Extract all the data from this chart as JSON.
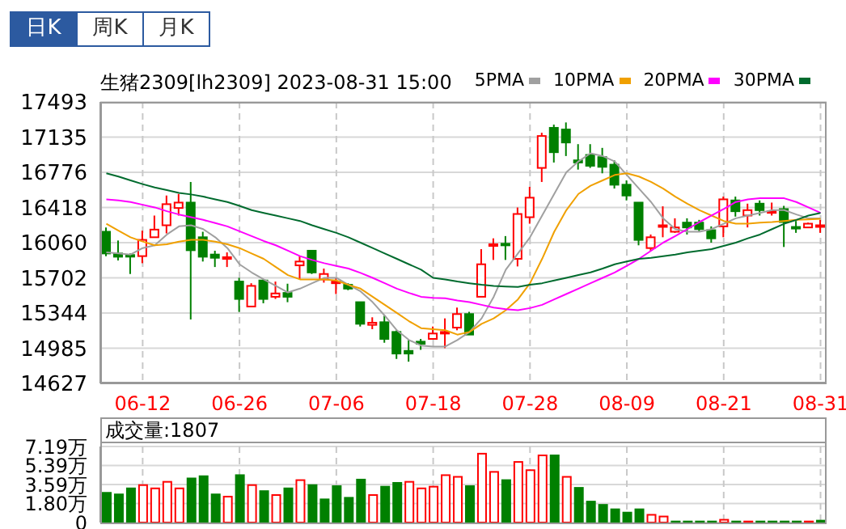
{
  "chart_data": [
    {
      "type": "candlestick",
      "title": "生猪2309[lh2309] 2023-08-31 15:00",
      "annotations": [
        "日K",
        "周K",
        "月K"
      ],
      "legend": "top right",
      "grid": true,
      "marker": "none",
      "categories": [
        null,
        null,
        null,
        "06-12",
        null,
        null,
        null,
        null,
        null,
        null,
        null,
        "06-26",
        null,
        null,
        null,
        null,
        null,
        null,
        null,
        "07-06",
        null,
        null,
        null,
        null,
        null,
        null,
        null,
        "07-18",
        null,
        null,
        null,
        null,
        null,
        null,
        null,
        "07-28",
        null,
        null,
        null,
        null,
        null,
        null,
        null,
        "08-09",
        null,
        null,
        null,
        null,
        null,
        null,
        null,
        "08-21",
        null,
        null,
        null,
        null,
        null,
        null,
        null,
        "08-31"
      ],
      "ylim": [
        14627,
        17493
      ],
      "yticks": [
        14627,
        14985,
        15344,
        15702,
        16060,
        16418,
        16776,
        17135,
        17493
      ],
      "ohlc": [
        [
          16171,
          16215,
          15923,
          15950
        ],
        [
          15950,
          16082,
          15879,
          15917
        ],
        [
          15934,
          15950,
          15741,
          15923
        ],
        [
          15923,
          16182,
          15851,
          16088
        ],
        [
          16115,
          16336,
          16115,
          16193
        ],
        [
          16237,
          16540,
          16154,
          16452
        ],
        [
          16413,
          16556,
          16336,
          16468
        ],
        [
          16468,
          16678,
          15278,
          15983
        ],
        [
          16115,
          16171,
          15868,
          15917
        ],
        [
          15939,
          15978,
          15812,
          15906
        ],
        [
          15895,
          15961,
          15812,
          15912
        ],
        [
          15664,
          15702,
          15355,
          15487
        ],
        [
          15410,
          15647,
          15410,
          15620
        ],
        [
          15675,
          15686,
          15443,
          15487
        ],
        [
          15509,
          15664,
          15487,
          15543
        ],
        [
          15548,
          15642,
          15454,
          15509
        ],
        [
          15829,
          15923,
          15686,
          15868
        ],
        [
          15978,
          15978,
          15741,
          15757
        ],
        [
          15686,
          15796,
          15653,
          15741
        ],
        [
          15647,
          15702,
          15537,
          15664
        ],
        [
          15631,
          15647,
          15576,
          15592
        ],
        [
          15454,
          15454,
          15206,
          15234
        ],
        [
          15223,
          15300,
          15179,
          15245
        ],
        [
          15250,
          15317,
          15041,
          15080
        ],
        [
          15151,
          15168,
          14876,
          14931
        ],
        [
          14958,
          15069,
          14848,
          14931
        ],
        [
          15052,
          15080,
          14969,
          15030
        ],
        [
          15080,
          15206,
          15080,
          15135
        ],
        [
          15135,
          15289,
          14986,
          15151
        ],
        [
          15195,
          15399,
          15168,
          15333
        ],
        [
          15333,
          15355,
          15124,
          15124
        ],
        [
          15509,
          15994,
          15509,
          15840
        ],
        [
          16027,
          16104,
          15884,
          16044
        ],
        [
          16049,
          16127,
          15884,
          16038
        ],
        [
          15895,
          16418,
          15818,
          16352
        ],
        [
          16319,
          16628,
          16253,
          16518
        ],
        [
          16821,
          17179,
          16678,
          17146
        ],
        [
          17229,
          17262,
          16876,
          16981
        ],
        [
          17212,
          17284,
          16942,
          17080
        ],
        [
          16898,
          17063,
          16804,
          16876
        ],
        [
          16953,
          17063,
          16821,
          16843
        ],
        [
          16931,
          17025,
          16766,
          16832
        ],
        [
          16854,
          16898,
          16611,
          16650
        ],
        [
          16650,
          16694,
          16490,
          16540
        ],
        [
          16468,
          16468,
          16033,
          16088
        ],
        [
          16005,
          16143,
          15978,
          16115
        ],
        [
          16226,
          16430,
          16115,
          16237
        ],
        [
          16171,
          16308,
          16160,
          16215
        ],
        [
          16264,
          16308,
          16143,
          16215
        ],
        [
          16264,
          16292,
          16171,
          16198
        ],
        [
          16187,
          16226,
          16060,
          16104
        ],
        [
          16226,
          16529,
          16115,
          16501
        ],
        [
          16490,
          16529,
          16325,
          16380
        ],
        [
          16336,
          16457,
          16215,
          16391
        ],
        [
          16457,
          16490,
          16336,
          16391
        ],
        [
          16369,
          16468,
          16336,
          16380
        ],
        [
          16402,
          16435,
          16016,
          16270
        ],
        [
          16220,
          16281,
          16160,
          16209
        ],
        [
          16215,
          16264,
          16215,
          16253
        ],
        [
          16226,
          16292,
          16160,
          16237
        ]
      ],
      "series": [
        {
          "type": "line",
          "name": "5PMA",
          "color": "#a0a0a0",
          "values": [
            15961,
            15950,
            15939,
            16005,
            16033,
            16143,
            16226,
            16237,
            16198,
            16115,
            16005,
            15840,
            15757,
            15686,
            15620,
            15553,
            15592,
            15647,
            15702,
            15702,
            15631,
            15564,
            15454,
            15317,
            15168,
            15069,
            15013,
            15002,
            15002,
            15069,
            15151,
            15289,
            15509,
            15785,
            15950,
            16115,
            16336,
            16556,
            16777,
            16887,
            16970,
            16942,
            16887,
            16749,
            16611,
            16474,
            16308,
            16198,
            16171,
            16171,
            16198,
            16253,
            16308,
            16336,
            16363,
            16391,
            16391,
            16347,
            16308,
            16308
          ]
        },
        {
          "type": "line",
          "name": "10PMA",
          "color": "#f0a000",
          "values": [
            16253,
            16182,
            16115,
            16071,
            16033,
            16044,
            16071,
            16088,
            16088,
            16071,
            16044,
            16005,
            15950,
            15895,
            15812,
            15730,
            15686,
            15686,
            15686,
            15675,
            15631,
            15592,
            15509,
            15427,
            15344,
            15261,
            15190,
            15179,
            15168,
            15124,
            15151,
            15234,
            15289,
            15372,
            15482,
            15647,
            15895,
            16171,
            16391,
            16556,
            16639,
            16694,
            16749,
            16766,
            16733,
            16678,
            16611,
            16529,
            16457,
            16391,
            16336,
            16281,
            16253,
            16253,
            16264,
            16270,
            16281,
            16292,
            16297,
            16303
          ]
        },
        {
          "type": "line",
          "name": "20PMA",
          "color": "#ff00ff",
          "values": [
            16501,
            16490,
            16474,
            16446,
            16419,
            16380,
            16347,
            16319,
            16292,
            16259,
            16226,
            16176,
            16127,
            16077,
            16033,
            15978,
            15923,
            15884,
            15851,
            15824,
            15796,
            15752,
            15702,
            15647,
            15592,
            15548,
            15509,
            15498,
            15493,
            15471,
            15454,
            15427,
            15399,
            15383,
            15372,
            15394,
            15427,
            15482,
            15537,
            15592,
            15647,
            15702,
            15757,
            15824,
            15895,
            15978,
            16060,
            16127,
            16198,
            16270,
            16336,
            16402,
            16474,
            16501,
            16512,
            16512,
            16512,
            16474,
            16419,
            16363
          ]
        },
        {
          "type": "line",
          "name": "30PMA",
          "color": "#006b2e",
          "values": [
            16766,
            16733,
            16694,
            16656,
            16622,
            16595,
            16567,
            16551,
            16529,
            16501,
            16474,
            16435,
            16391,
            16363,
            16336,
            16308,
            16281,
            16237,
            16198,
            16160,
            16115,
            16060,
            16005,
            15950,
            15895,
            15840,
            15785,
            15702,
            15686,
            15664,
            15647,
            15631,
            15620,
            15614,
            15609,
            15631,
            15647,
            15675,
            15702,
            15730,
            15757,
            15796,
            15840,
            15868,
            15895,
            15906,
            15923,
            15939,
            15961,
            15978,
            15994,
            16027,
            16060,
            16104,
            16143,
            16198,
            16253,
            16292,
            16336,
            16363
          ]
        }
      ]
    },
    {
      "type": "bar",
      "title": "成交量:1807",
      "grid": true,
      "categories": [
        null,
        null,
        null,
        null,
        null,
        null,
        null,
        null,
        null,
        null,
        null,
        null,
        null,
        null,
        null,
        null,
        null,
        null,
        null,
        null,
        null,
        null,
        null,
        null,
        null,
        null,
        null,
        null,
        null,
        null,
        null,
        null,
        null,
        null,
        null,
        null,
        null,
        null,
        null,
        null,
        null,
        null,
        null,
        null,
        null,
        null,
        null,
        null,
        null,
        null,
        null,
        null,
        null,
        null,
        null,
        null,
        null,
        null,
        null,
        null
      ],
      "ylim": [
        0,
        7.19
      ],
      "yticks": [
        0,
        {
          "value": 1.8,
          "label": "1.80万"
        },
        {
          "value": 3.59,
          "label": "3.59万"
        },
        {
          "value": 5.39,
          "label": "5.39万"
        },
        {
          "value": 7.19,
          "label": "7.19万"
        }
      ],
      "values": [
        2.81,
        2.66,
        3.23,
        3.54,
        3.23,
        3.85,
        3.23,
        4.17,
        4.38,
        2.66,
        2.45,
        4.48,
        3.54,
        2.97,
        2.6,
        3.23,
        4.01,
        3.54,
        2.19,
        3.44,
        2.34,
        4.06,
        2.6,
        3.39,
        3.75,
        3.85,
        3.23,
        3.39,
        4.48,
        4.32,
        3.44,
        6.51,
        4.79,
        4.01,
        5.73,
        4.95,
        6.35,
        6.35,
        4.32,
        3.28,
        1.98,
        1.67,
        1.25,
        0.94,
        1.25,
        0.73,
        0.57,
        0.1,
        0.1,
        0.1,
        0.1,
        0.26,
        0.1,
        0.1,
        0.1,
        0.1,
        0.1,
        0.1,
        0.1,
        0.18
      ],
      "colors": [
        "#008000",
        "#008000",
        "#008000",
        "#ff0000",
        "#ff0000",
        "#ff0000",
        "#ff0000",
        "#008000",
        "#008000",
        "#008000",
        "#ff0000",
        "#008000",
        "#ff0000",
        "#008000",
        "#ff0000",
        "#008000",
        "#ff0000",
        "#008000",
        "#008000",
        "#008000",
        "#008000",
        "#008000",
        "#ff0000",
        "#008000",
        "#008000",
        "#ff0000",
        "#ff0000",
        "#ff0000",
        "#ff0000",
        "#ff0000",
        "#008000",
        "#ff0000",
        "#ff0000",
        "#008000",
        "#ff0000",
        "#ff0000",
        "#ff0000",
        "#008000",
        "#ff0000",
        "#008000",
        "#008000",
        "#008000",
        "#008000",
        "#008000",
        "#008000",
        "#ff0000",
        "#ff0000",
        "#008000",
        "#008000",
        "#008000",
        "#008000",
        "#ff0000",
        "#008000",
        "#ff0000",
        "#008000",
        "#008000",
        "#008000",
        "#008000",
        "#ff0000",
        "#008000"
      ]
    }
  ]
}
